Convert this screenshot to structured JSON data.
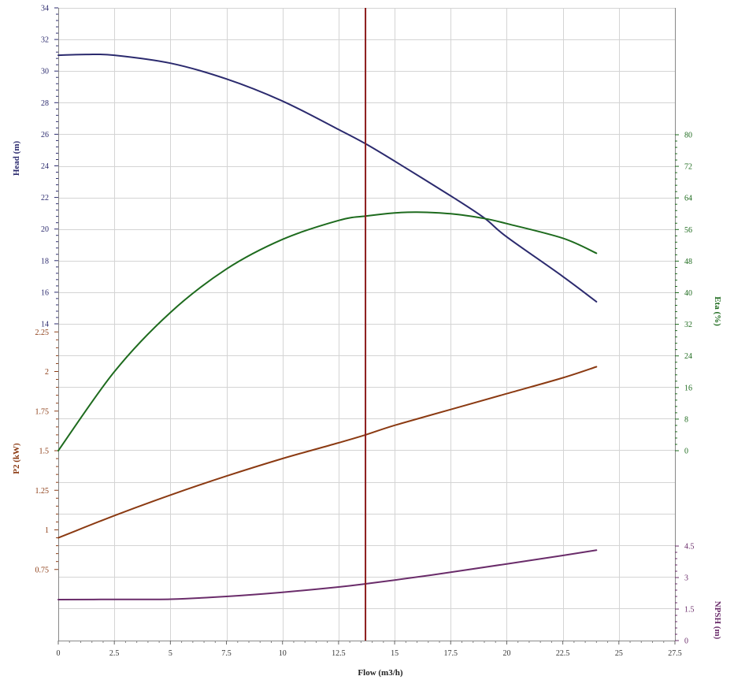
{
  "chart_data": {
    "type": "line",
    "grid": true,
    "x_axis": {
      "label": "Flow (m3/h)",
      "range": [
        0,
        27.5
      ],
      "ticks": [
        0,
        2.5,
        5,
        7.5,
        10,
        12.5,
        15,
        17.5,
        20,
        22.5,
        25,
        27.5
      ],
      "tick_labels": [
        "0",
        "2.5",
        "5",
        "7.5",
        "10",
        "12.5",
        "15",
        "17.5",
        "20",
        "22.5",
        "25",
        "27.5"
      ]
    },
    "axes": {
      "head": {
        "label": "Head (m)",
        "side": "left",
        "color": "#2b2a6e",
        "range": [
          14,
          34
        ],
        "ticks": [
          14,
          16,
          18,
          20,
          22,
          24,
          26,
          28,
          30,
          32,
          34
        ],
        "tick_labels": [
          "14",
          "16",
          "18",
          "20",
          "22",
          "24",
          "26",
          "28",
          "30",
          "32",
          "34"
        ]
      },
      "p2": {
        "label": "P2 (kW)",
        "side": "left",
        "color": "#8b3a12",
        "range": [
          0.5,
          2.5
        ],
        "ticks": [
          0.75,
          1,
          1.25,
          1.5,
          1.75,
          2,
          2.25
        ],
        "tick_labels": [
          "0.75",
          "1",
          "1.25",
          "1.5",
          "1.75",
          "2",
          "2.25"
        ]
      },
      "eta": {
        "label": "Eta (%)",
        "side": "right",
        "color": "#1e6b1e",
        "range": [
          0,
          100
        ],
        "ticks": [
          0,
          8,
          16,
          24,
          32,
          40,
          48,
          56,
          64,
          72,
          80
        ],
        "tick_labels": [
          "0",
          "8",
          "16",
          "24",
          "32",
          "40",
          "48",
          "56",
          "64",
          "72",
          "80"
        ]
      },
      "npsh": {
        "label": "NPSH (m)",
        "side": "right",
        "color": "#6a2c6a",
        "range": [
          0,
          6
        ],
        "ticks": [
          0,
          1.5,
          3,
          4.5
        ],
        "tick_labels": [
          "0",
          "1.5",
          "3",
          "4.5"
        ]
      }
    },
    "series": [
      {
        "key": "head",
        "axis": "head",
        "color": "#2b2a6e",
        "x": [
          0,
          1.25,
          2.5,
          5,
          7.5,
          10,
          12.5,
          13.7,
          15,
          17.5,
          19,
          20,
          22.5,
          24
        ],
        "y": [
          31,
          31.05,
          31,
          30.5,
          29.5,
          28.1,
          26.3,
          25.4,
          24.3,
          22.1,
          20.7,
          19.5,
          17,
          15.4
        ]
      },
      {
        "key": "eta",
        "axis": "eta",
        "color": "#1e6b1e",
        "x": [
          0,
          2.5,
          5,
          7.5,
          10,
          12.5,
          13.7,
          15,
          16,
          17.5,
          19,
          20,
          22.5,
          24
        ],
        "y": [
          0,
          20,
          35,
          46,
          53.5,
          58.3,
          59.4,
          60.2,
          60.4,
          60,
          58.8,
          57.5,
          53.8,
          50
        ]
      },
      {
        "key": "p2",
        "axis": "p2",
        "color": "#8b3a12",
        "x": [
          0,
          2.5,
          5,
          7.5,
          10,
          12.5,
          13.7,
          15,
          17.5,
          20,
          22.5,
          24
        ],
        "y": [
          0.95,
          1.09,
          1.22,
          1.34,
          1.45,
          1.55,
          1.6,
          1.66,
          1.76,
          1.86,
          1.96,
          2.03
        ]
      },
      {
        "key": "npsh",
        "axis": "npsh",
        "color": "#6a2c6a",
        "x": [
          0,
          2.5,
          5,
          7.5,
          10,
          12.5,
          13.7,
          15,
          17.5,
          20,
          22.5,
          24
        ],
        "y": [
          1.95,
          1.96,
          1.97,
          2.1,
          2.3,
          2.55,
          2.7,
          2.88,
          3.25,
          3.65,
          4.05,
          4.3
        ]
      }
    ],
    "operating_point": {
      "x": 13.7,
      "color": "#8b1a1a"
    }
  }
}
